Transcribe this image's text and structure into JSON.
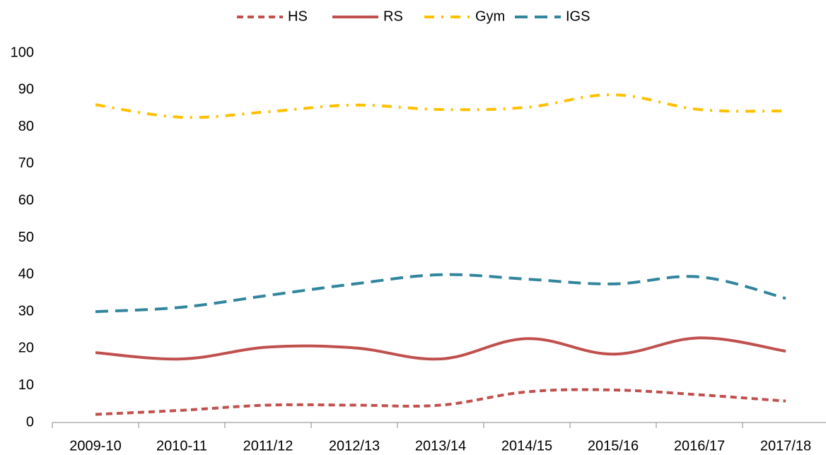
{
  "chart_data": {
    "type": "line",
    "categories": [
      "2009-10",
      "2010-11",
      "2011/12",
      "2012/13",
      "2013/14",
      "2014/15",
      "2015/16",
      "2016/17",
      "2017/18"
    ],
    "series": [
      {
        "name": "HS",
        "color": "#c0504d",
        "dash": "dashed",
        "values": [
          2.2,
          3.3,
          4.7,
          4.7,
          4.7,
          8.3,
          8.8,
          7.5,
          5.8
        ]
      },
      {
        "name": "RS",
        "color": "#c0504d",
        "dash": "solid",
        "values": [
          18.9,
          17.2,
          20.4,
          20.2,
          17.2,
          22.7,
          18.5,
          22.9,
          19.3
        ]
      },
      {
        "name": "Gym",
        "color": "#ffc000",
        "dash": "dashdot",
        "values": [
          86.0,
          82.6,
          84.1,
          85.9,
          84.7,
          85.3,
          88.7,
          84.7,
          84.3
        ]
      },
      {
        "name": "IGS",
        "color": "#31859c",
        "dash": "longdash",
        "values": [
          30.0,
          31.2,
          34.4,
          37.5,
          40.0,
          38.8,
          37.5,
          39.4,
          33.6
        ]
      }
    ],
    "ylim": [
      0,
      100
    ],
    "yticks": [
      0,
      10,
      20,
      30,
      40,
      50,
      60,
      70,
      80,
      90,
      100
    ],
    "grid": false,
    "legend": "top"
  }
}
